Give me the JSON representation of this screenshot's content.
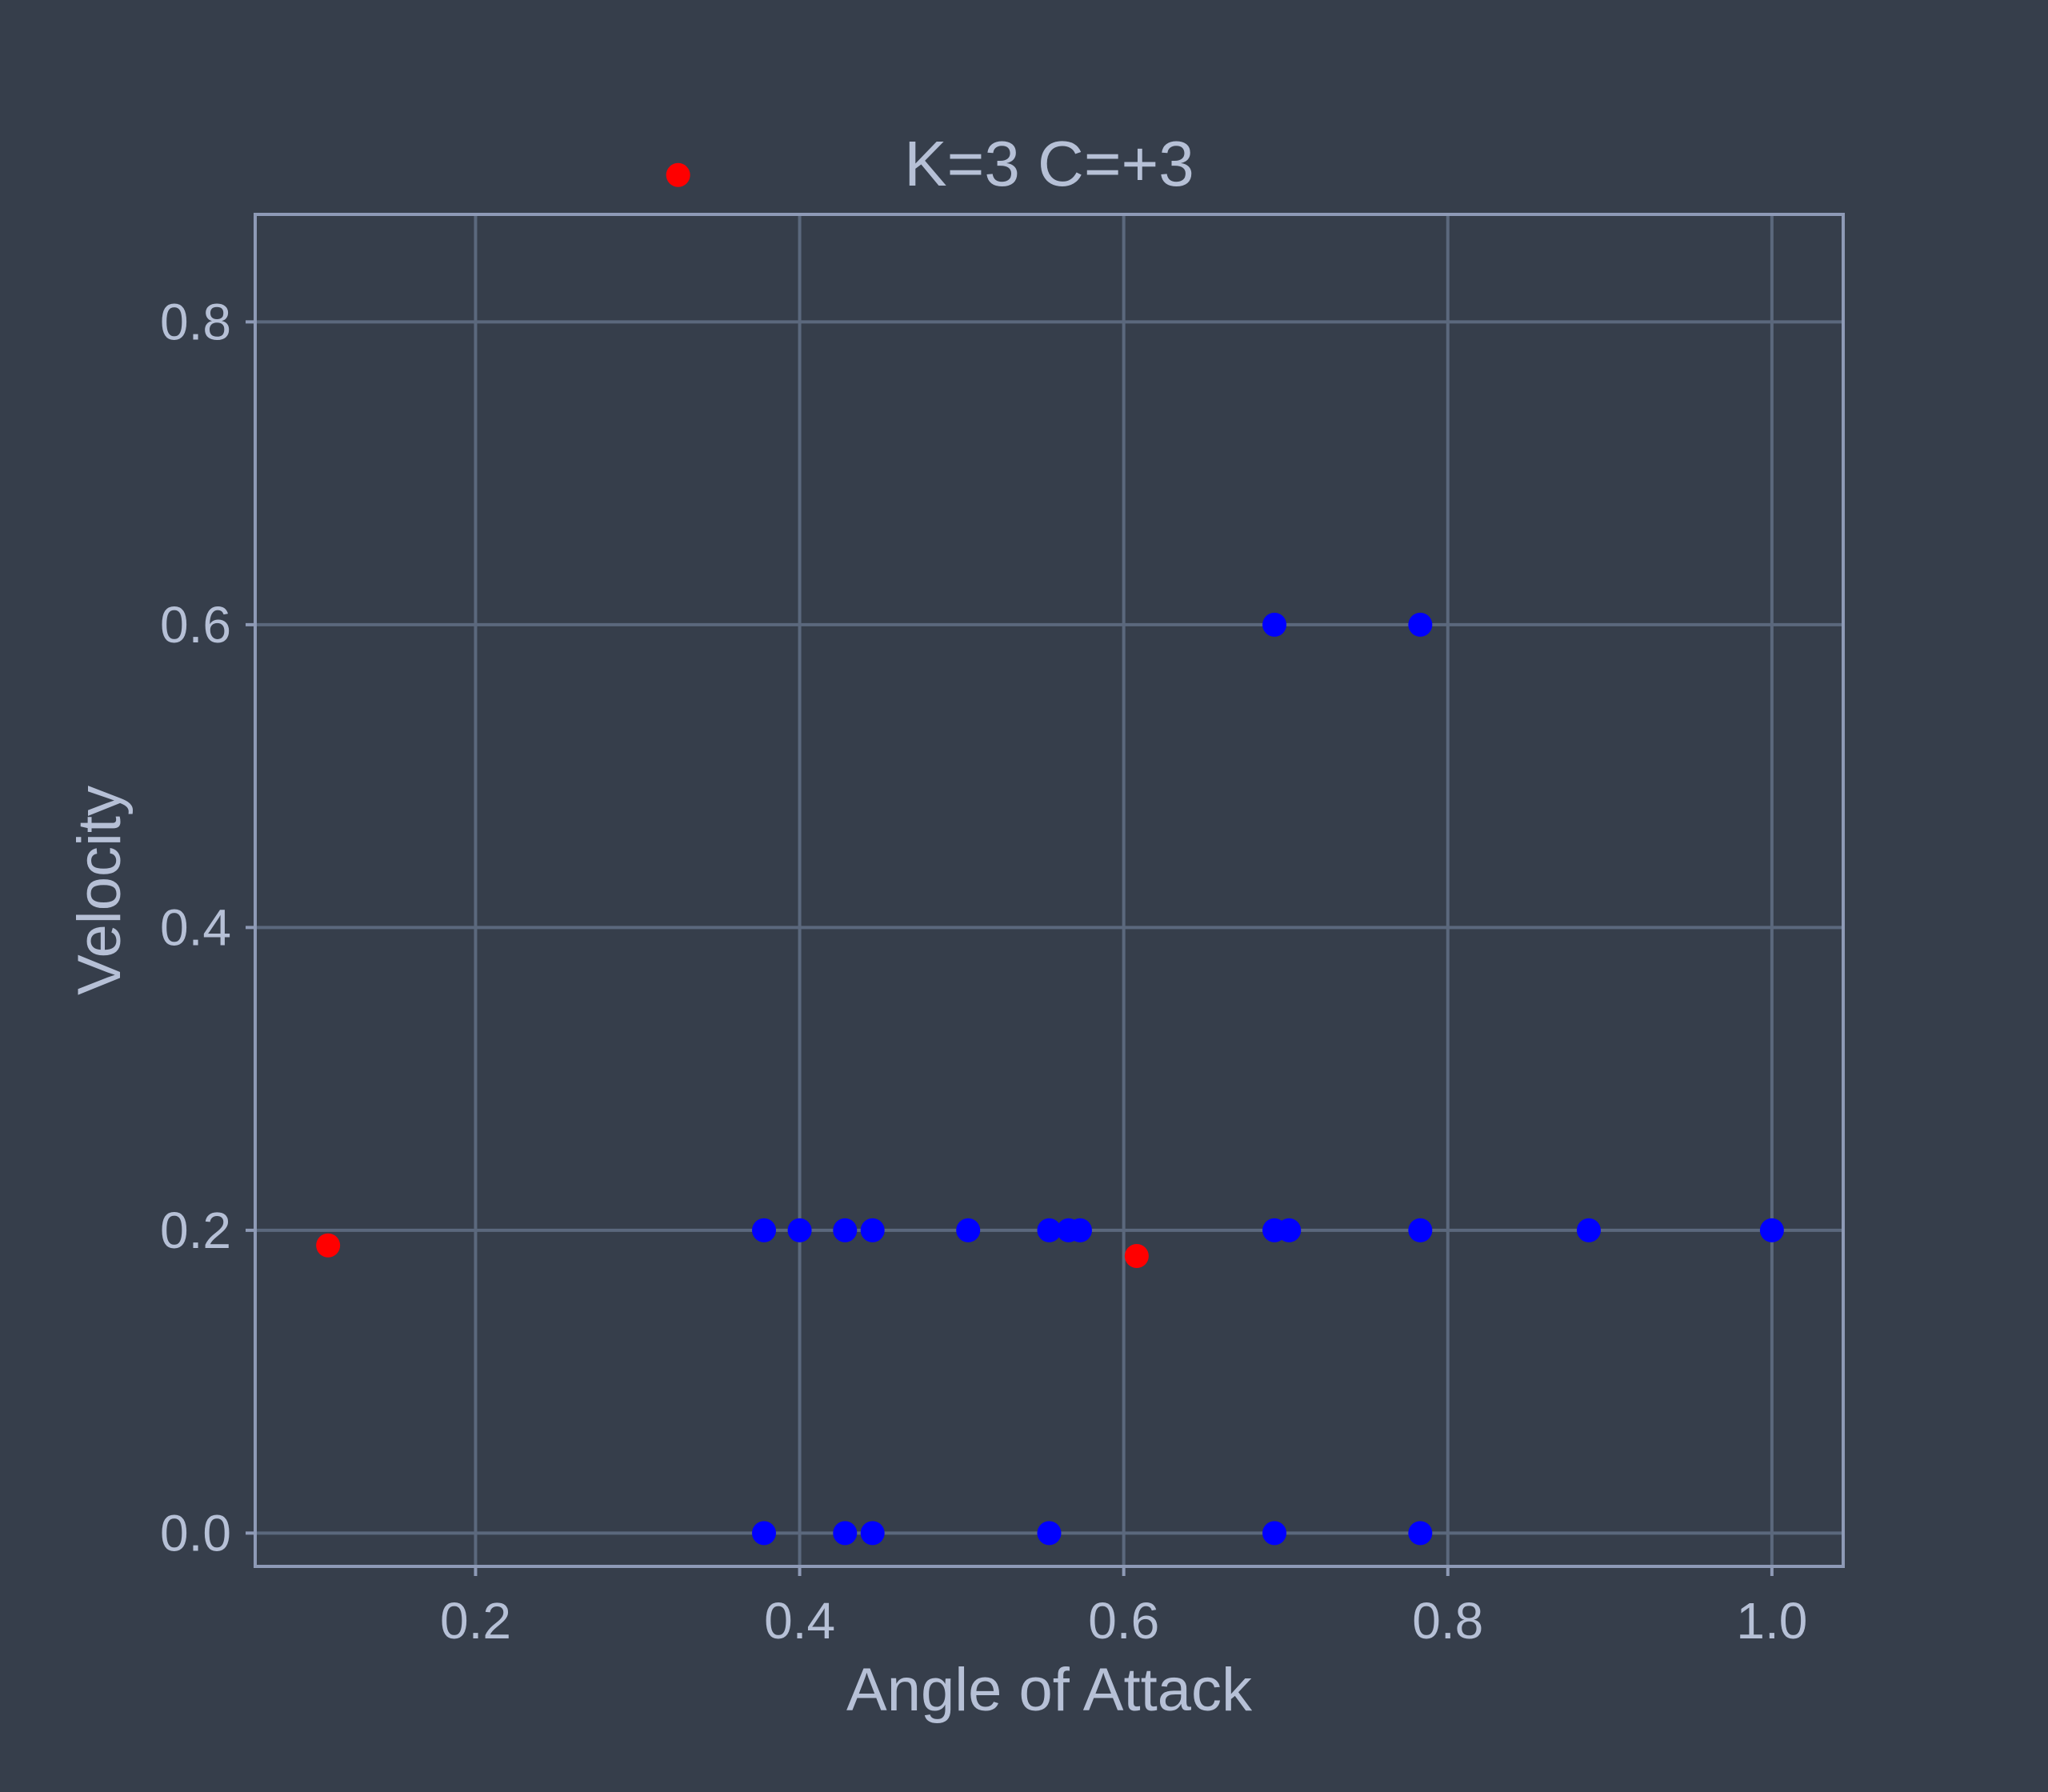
{
  "chart_data": {
    "type": "scatter",
    "title": "K=3 C=+3",
    "xlabel": "Angle of Attack",
    "ylabel": "Velocity",
    "xlim": [
      0.064,
      1.044
    ],
    "ylim": [
      -0.022,
      0.871
    ],
    "xticks": [
      "0.2",
      "0.4",
      "0.6",
      "0.8",
      "1.0"
    ],
    "yticks": [
      "0.0",
      "0.2",
      "0.4",
      "0.6",
      "0.8"
    ],
    "grid": true,
    "legend": "none",
    "colors": {
      "background": "#363e4b",
      "frame": "#8e9ab6",
      "grid": "#5b687d",
      "text": "#b6c0d6"
    },
    "series": [
      {
        "color": "#0000ff",
        "x": [
          0.378,
          0.4,
          0.428,
          0.445,
          0.504,
          0.554,
          0.566,
          0.573,
          0.693,
          0.702,
          0.783,
          0.887,
          1.0,
          0.378,
          0.428,
          0.445,
          0.554,
          0.693,
          0.783,
          0.693,
          0.783
        ],
        "y": [
          0.2,
          0.2,
          0.2,
          0.2,
          0.2,
          0.2,
          0.2,
          0.2,
          0.2,
          0.2,
          0.2,
          0.2,
          0.2,
          0.0,
          0.0,
          0.0,
          0.0,
          0.0,
          0.0,
          0.6,
          0.6
        ]
      },
      {
        "color": "#ff0000",
        "x": [
          0.109,
          0.325,
          0.608
        ],
        "y": [
          0.19,
          0.897,
          0.183
        ]
      }
    ]
  }
}
